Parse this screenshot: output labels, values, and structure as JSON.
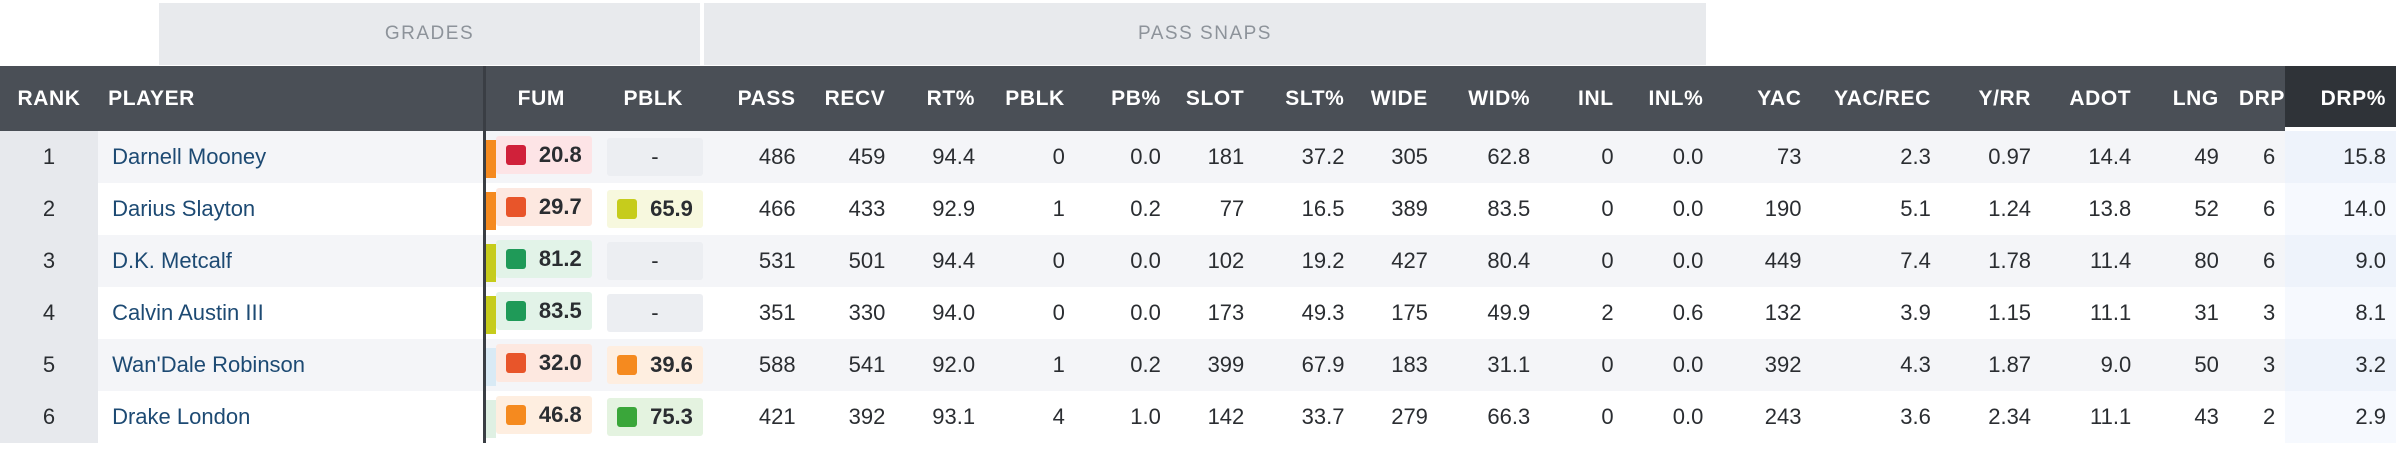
{
  "group_headers": {
    "grades": "GRADES",
    "pass_snaps": "PASS SNAPS"
  },
  "columns": {
    "rank": "RANK",
    "player": "PLAYER",
    "fum": "FUM",
    "pblk_grade": "PBLK",
    "pass": "PASS",
    "recv": "RECV",
    "rt_pct": "RT%",
    "pblk": "PBLK",
    "pb_pct": "PB%",
    "slot": "SLOT",
    "slt_pct": "SLT%",
    "wide": "WIDE",
    "wid_pct": "WID%",
    "inl": "INL",
    "inl_pct": "INL%",
    "yac": "YAC",
    "yac_rec": "YAC/REC",
    "y_rr": "Y/RR",
    "adot": "ADOT",
    "lng": "LNG",
    "drp": "DRP",
    "drp_pct": "DRP%"
  },
  "colors": {
    "red": "#d0213a",
    "orange_red": "#e8552a",
    "orange": "#f58a1f",
    "yellow_green": "#c6cc1c",
    "green": "#3aa63a",
    "dark_green": "#1f9a58"
  },
  "rows": [
    {
      "rank": "1",
      "player": "Darnell Mooney",
      "sliver_color": "#f58a1f",
      "fum": {
        "value": "20.8",
        "color": "#d0213a",
        "bg": "#fde4e6"
      },
      "pblk_grade": {
        "value": "-",
        "color": "",
        "bg": "#eceef2"
      },
      "pass": "486",
      "recv": "459",
      "rt_pct": "94.4",
      "pblk": "0",
      "pb_pct": "0.0",
      "slot": "181",
      "slt_pct": "37.2",
      "wide": "305",
      "wid_pct": "62.8",
      "inl": "0",
      "inl_pct": "0.0",
      "yac": "73",
      "yac_rec": "2.3",
      "y_rr": "0.97",
      "adot": "14.4",
      "lng": "49",
      "drp": "6",
      "drp_pct": "15.8"
    },
    {
      "rank": "2",
      "player": "Darius Slayton",
      "sliver_color": "#f58a1f",
      "fum": {
        "value": "29.7",
        "color": "#e8552a",
        "bg": "#fde8e0"
      },
      "pblk_grade": {
        "value": "65.9",
        "color": "#c6cc1c",
        "bg": "#f7f8de"
      },
      "pass": "466",
      "recv": "433",
      "rt_pct": "92.9",
      "pblk": "1",
      "pb_pct": "0.2",
      "slot": "77",
      "slt_pct": "16.5",
      "wide": "389",
      "wid_pct": "83.5",
      "inl": "0",
      "inl_pct": "0.0",
      "yac": "190",
      "yac_rec": "5.1",
      "y_rr": "1.24",
      "adot": "13.8",
      "lng": "52",
      "drp": "6",
      "drp_pct": "14.0"
    },
    {
      "rank": "3",
      "player": "D.K. Metcalf",
      "sliver_color": "#c6cc1c",
      "fum": {
        "value": "81.2",
        "color": "#1f9a58",
        "bg": "#e2f3e8"
      },
      "pblk_grade": {
        "value": "-",
        "color": "",
        "bg": "#eceef2"
      },
      "pass": "531",
      "recv": "501",
      "rt_pct": "94.4",
      "pblk": "0",
      "pb_pct": "0.0",
      "slot": "102",
      "slt_pct": "19.2",
      "wide": "427",
      "wid_pct": "80.4",
      "inl": "0",
      "inl_pct": "0.0",
      "yac": "449",
      "yac_rec": "7.4",
      "y_rr": "1.78",
      "adot": "11.4",
      "lng": "80",
      "drp": "6",
      "drp_pct": "9.0"
    },
    {
      "rank": "4",
      "player": "Calvin Austin III",
      "sliver_color": "#c6cc1c",
      "fum": {
        "value": "83.5",
        "color": "#1f9a58",
        "bg": "#e2f3e8"
      },
      "pblk_grade": {
        "value": "-",
        "color": "",
        "bg": "#eceef2"
      },
      "pass": "351",
      "recv": "330",
      "rt_pct": "94.0",
      "pblk": "0",
      "pb_pct": "0.0",
      "slot": "173",
      "slt_pct": "49.3",
      "wide": "175",
      "wid_pct": "49.9",
      "inl": "2",
      "inl_pct": "0.6",
      "yac": "132",
      "yac_rec": "3.9",
      "y_rr": "1.15",
      "adot": "11.1",
      "lng": "31",
      "drp": "3",
      "drp_pct": "8.1"
    },
    {
      "rank": "5",
      "player": "Wan'Dale Robinson",
      "sliver_color": "#d9eaf5",
      "fum": {
        "value": "32.0",
        "color": "#e8552a",
        "bg": "#fde8e0"
      },
      "pblk_grade": {
        "value": "39.6",
        "color": "#f58a1f",
        "bg": "#feeee0"
      },
      "pass": "588",
      "recv": "541",
      "rt_pct": "92.0",
      "pblk": "1",
      "pb_pct": "0.2",
      "slot": "399",
      "slt_pct": "67.9",
      "wide": "183",
      "wid_pct": "31.1",
      "inl": "0",
      "inl_pct": "0.0",
      "yac": "392",
      "yac_rec": "4.3",
      "y_rr": "1.87",
      "adot": "9.0",
      "lng": "50",
      "drp": "3",
      "drp_pct": "3.2"
    },
    {
      "rank": "6",
      "player": "Drake London",
      "sliver_color": "#dff0e3",
      "fum": {
        "value": "46.8",
        "color": "#f58a1f",
        "bg": "#feeee0"
      },
      "pblk_grade": {
        "value": "75.3",
        "color": "#3aa63a",
        "bg": "#e4f3e0"
      },
      "pass": "421",
      "recv": "392",
      "rt_pct": "93.1",
      "pblk": "4",
      "pb_pct": "1.0",
      "slot": "142",
      "slt_pct": "33.7",
      "wide": "279",
      "wid_pct": "66.3",
      "inl": "0",
      "inl_pct": "0.0",
      "yac": "243",
      "yac_rec": "3.6",
      "y_rr": "2.34",
      "adot": "11.1",
      "lng": "43",
      "drp": "2",
      "drp_pct": "2.9"
    }
  ]
}
